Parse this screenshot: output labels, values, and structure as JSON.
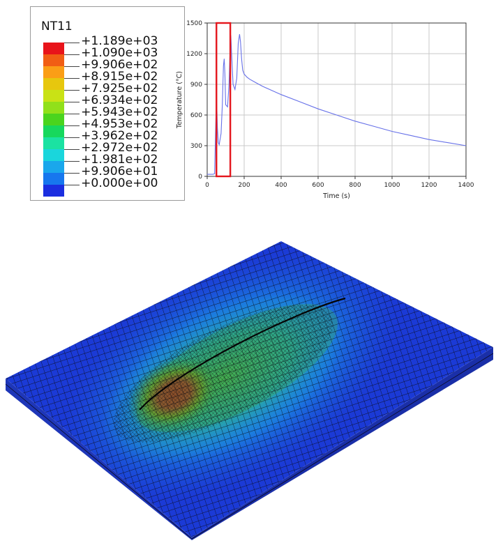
{
  "legend": {
    "title": "NT11",
    "labels": [
      "+1.189e+03",
      "+1.090e+03",
      "+9.906e+02",
      "+8.915e+02",
      "+7.925e+02",
      "+6.934e+02",
      "+5.943e+02",
      "+4.953e+02",
      "+3.962e+02",
      "+2.972e+02",
      "+1.981e+02",
      "+9.906e+01",
      "+0.000e+00"
    ],
    "colors": [
      "#e8141a",
      "#f15e14",
      "#fb9e16",
      "#e7c70e",
      "#c9e215",
      "#91e01a",
      "#4ad41e",
      "#17d85d",
      "#1be2a2",
      "#1ad6dc",
      "#1aa7ec",
      "#1777ee",
      "#1b2ee0"
    ]
  },
  "chart_data": {
    "type": "line",
    "title": "",
    "xlabel": "Time (s)",
    "ylabel": "Temperature (°C)",
    "xlim": [
      0,
      1400
    ],
    "ylim": [
      0,
      1500
    ],
    "xticks": [
      "0",
      "200",
      "400",
      "600",
      "800",
      "1000",
      "1200",
      "1400"
    ],
    "yticks": [
      "0",
      "300",
      "600",
      "900",
      "1200",
      "1500"
    ],
    "grid": true,
    "series": [
      {
        "name": "Temperature",
        "color": "#6670e8",
        "x": [
          0,
          30,
          40,
          45,
          50,
          55,
          60,
          65,
          75,
          82,
          88,
          92,
          96,
          100,
          110,
          118,
          124,
          128,
          132,
          140,
          150,
          160,
          168,
          175,
          180,
          186,
          192,
          200,
          215,
          230,
          260,
          300,
          400,
          500,
          600,
          700,
          800,
          900,
          1000,
          1100,
          1200,
          1300,
          1400
        ],
        "values": [
          20,
          20,
          25,
          400,
          820,
          480,
          330,
          310,
          420,
          700,
          1080,
          1150,
          1000,
          700,
          680,
          900,
          1260,
          1380,
          1200,
          900,
          850,
          960,
          1300,
          1390,
          1320,
          1150,
          1040,
          1000,
          970,
          950,
          920,
          880,
          800,
          730,
          660,
          600,
          540,
          490,
          440,
          400,
          360,
          330,
          300
        ]
      }
    ],
    "annotations": [
      {
        "type": "highlight-box",
        "x_range": [
          50,
          125
        ],
        "y_range": [
          0,
          1500
        ],
        "color": "#e4151c"
      }
    ]
  },
  "contour_plot": {
    "variable": "NT11",
    "description_colors": {
      "hot": "#e8141a",
      "cold": "#1b2ee0"
    }
  }
}
